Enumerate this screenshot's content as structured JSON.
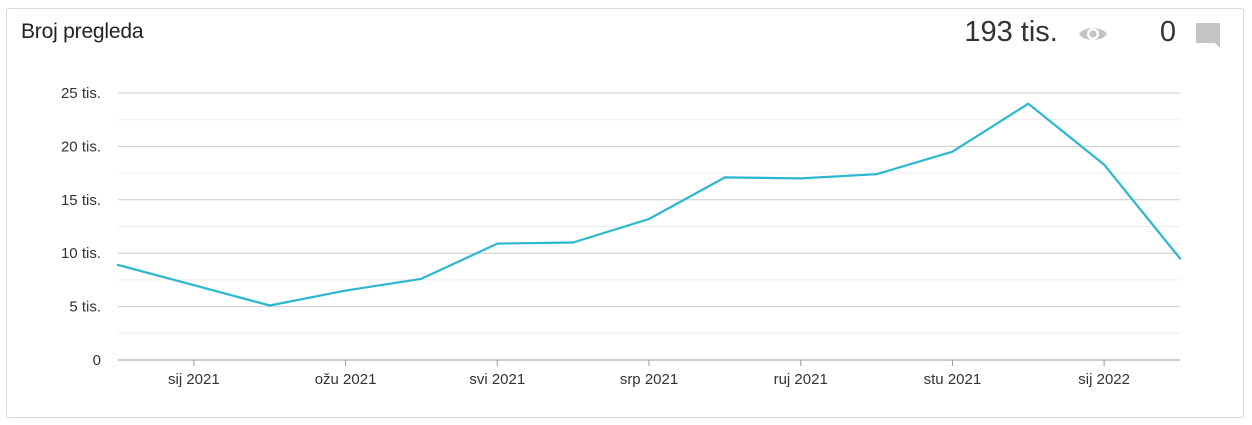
{
  "header": {
    "title": "Broj pregleda",
    "views_total": "193 tis.",
    "comments_total": "0",
    "views_icon": "eye-icon",
    "comments_icon": "comment-icon"
  },
  "colors": {
    "line": "#2bb7cf",
    "grid": "#cccccc",
    "minor_grid": "#ececec",
    "axis": "#999999",
    "icon": "#c4c4c4"
  },
  "chart_data": {
    "type": "line",
    "title": "",
    "xlabel": "",
    "ylabel": "",
    "x": [
      "2020-12",
      "2021-01",
      "2021-02",
      "2021-03",
      "2021-04",
      "2021-05",
      "2021-06",
      "2021-07",
      "2021-08",
      "2021-09",
      "2021-10",
      "2021-11",
      "2021-12",
      "2022-01",
      "2022-02"
    ],
    "values": [
      8900,
      7000,
      5100,
      6500,
      7600,
      10900,
      11000,
      13200,
      17100,
      17000,
      17400,
      19500,
      24000,
      18300,
      9500
    ],
    "xticks": [
      {
        "label": "sij 2021",
        "x": "2021-01"
      },
      {
        "label": "ožu 2021",
        "x": "2021-03"
      },
      {
        "label": "svi 2021",
        "x": "2021-05"
      },
      {
        "label": "srp 2021",
        "x": "2021-07"
      },
      {
        "label": "ruj 2021",
        "x": "2021-09"
      },
      {
        "label": "stu 2021",
        "x": "2021-11"
      },
      {
        "label": "sij 2022",
        "x": "2022-01"
      }
    ],
    "yticks": [
      {
        "label": "0",
        "value": 0
      },
      {
        "label": "5 tis.",
        "value": 5000
      },
      {
        "label": "10 tis.",
        "value": 10000
      },
      {
        "label": "15 tis.",
        "value": 15000
      },
      {
        "label": "20 tis.",
        "value": 20000
      },
      {
        "label": "25 tis.",
        "value": 25000
      }
    ],
    "ylim": [
      0,
      25000
    ],
    "grid": true,
    "legend": "none"
  }
}
